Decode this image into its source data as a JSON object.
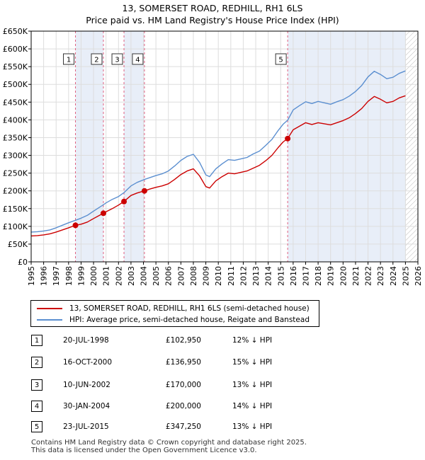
{
  "header": {
    "title_line1": "13, SOMERSET ROAD, REDHILL, RH1 6LS",
    "title_line2": "Price paid vs. HM Land Registry's House Price Index (HPI)"
  },
  "colors": {
    "price_line": "#cc0000",
    "hpi_line": "#5b8fd0",
    "shade": "#e8eef8",
    "vline": "#e06080",
    "grid": "#dddddd"
  },
  "chart_data": {
    "type": "line",
    "title": "13, SOMERSET ROAD, REDHILL, RH1 6LS — Price paid vs. HM Land Registry's House Price Index (HPI)",
    "xlim": [
      1995,
      2026
    ],
    "ylim": [
      0,
      650000
    ],
    "y_ticks": [
      0,
      50000,
      100000,
      150000,
      200000,
      250000,
      300000,
      350000,
      400000,
      450000,
      500000,
      550000,
      600000,
      650000
    ],
    "y_tick_labels": [
      "£0",
      "£50K",
      "£100K",
      "£150K",
      "£200K",
      "£250K",
      "£300K",
      "£350K",
      "£400K",
      "£450K",
      "£500K",
      "£550K",
      "£600K",
      "£650K"
    ],
    "x_ticks": [
      1995,
      1996,
      1997,
      1998,
      1999,
      2000,
      2001,
      2002,
      2003,
      2004,
      2005,
      2006,
      2007,
      2008,
      2009,
      2010,
      2011,
      2012,
      2013,
      2014,
      2015,
      2016,
      2017,
      2018,
      2019,
      2020,
      2021,
      2022,
      2023,
      2024,
      2025,
      2026
    ],
    "x_tick_labels": [
      "1995",
      "1996",
      "1997",
      "1998",
      "1999",
      "2000",
      "2001",
      "2002",
      "2003",
      "2004",
      "2005",
      "2006",
      "2007",
      "2008",
      "2009",
      "2010",
      "2011",
      "2012",
      "2013",
      "2014",
      "2015",
      "2016",
      "2017",
      "2018",
      "2019",
      "2020",
      "2021",
      "2022",
      "2023",
      "2024",
      "2025",
      "2026"
    ],
    "grid": true,
    "shaded_spans": [
      [
        1998.55,
        2000.79
      ],
      [
        2002.44,
        2004.08
      ],
      [
        2015.56,
        2025.0
      ]
    ],
    "hatch_after": 2025.0,
    "series": [
      {
        "name": "13, SOMERSET ROAD, REDHILL, RH1 6LS (semi-detached house)",
        "x": [
          1995.0,
          1995.5,
          1996.0,
          1996.5,
          1997.0,
          1997.5,
          1998.0,
          1998.55,
          1999.0,
          1999.5,
          2000.0,
          2000.79,
          2001.0,
          2001.5,
          2002.0,
          2002.44,
          2003.0,
          2003.5,
          2004.08,
          2004.5,
          2005.0,
          2005.5,
          2006.0,
          2006.5,
          2007.0,
          2007.5,
          2008.0,
          2008.5,
          2009.0,
          2009.3,
          2009.8,
          2010.3,
          2010.8,
          2011.3,
          2011.8,
          2012.3,
          2012.8,
          2013.3,
          2013.8,
          2014.3,
          2014.8,
          2015.2,
          2015.56,
          2016.0,
          2016.5,
          2017.0,
          2017.5,
          2018.0,
          2018.5,
          2019.0,
          2019.5,
          2020.0,
          2020.5,
          2021.0,
          2021.5,
          2022.0,
          2022.5,
          2023.0,
          2023.5,
          2024.0,
          2024.5,
          2025.0
        ],
        "values": [
          73000,
          74000,
          76000,
          79000,
          84000,
          90000,
          96000,
          102950,
          106000,
          112000,
          122000,
          136950,
          141000,
          150000,
          160000,
          170000,
          187000,
          194000,
          200000,
          205000,
          210000,
          214000,
          220000,
          232000,
          246000,
          256000,
          262000,
          242000,
          212000,
          208000,
          228000,
          240000,
          250000,
          248000,
          252000,
          256000,
          264000,
          272000,
          285000,
          300000,
          322000,
          338000,
          347250,
          372000,
          382000,
          392000,
          387000,
          392000,
          389000,
          386000,
          392000,
          398000,
          406000,
          418000,
          432000,
          452000,
          466000,
          458000,
          448000,
          452000,
          462000,
          468000
        ]
      },
      {
        "name": "HPI: Average price, semi-detached house, Reigate and Banstead",
        "x": [
          1995.0,
          1995.5,
          1996.0,
          1996.5,
          1997.0,
          1997.5,
          1998.0,
          1998.55,
          1999.0,
          1999.5,
          2000.0,
          2000.79,
          2001.0,
          2001.5,
          2002.0,
          2002.44,
          2003.0,
          2003.5,
          2004.08,
          2004.5,
          2005.0,
          2005.5,
          2006.0,
          2006.5,
          2007.0,
          2007.5,
          2008.0,
          2008.5,
          2009.0,
          2009.3,
          2009.8,
          2010.3,
          2010.8,
          2011.3,
          2011.8,
          2012.3,
          2012.8,
          2013.3,
          2013.8,
          2014.3,
          2014.8,
          2015.2,
          2015.56,
          2016.0,
          2016.5,
          2017.0,
          2017.5,
          2018.0,
          2018.5,
          2019.0,
          2019.5,
          2020.0,
          2020.5,
          2021.0,
          2021.5,
          2022.0,
          2022.5,
          2023.0,
          2023.5,
          2024.0,
          2024.5,
          2025.0
        ],
        "values": [
          84000,
          85000,
          87000,
          90000,
          96000,
          103000,
          110000,
          117000,
          123000,
          131000,
          143000,
          161000,
          166000,
          176000,
          184000,
          195000,
          214000,
          224000,
          232000,
          237000,
          243000,
          248000,
          256000,
          270000,
          286000,
          297000,
          303000,
          280000,
          245000,
          240000,
          262000,
          276000,
          288000,
          286000,
          290000,
          294000,
          304000,
          312000,
          328000,
          345000,
          370000,
          388000,
          399000,
          428000,
          440000,
          451000,
          446000,
          452000,
          448000,
          444000,
          451000,
          457000,
          467000,
          480000,
          497000,
          521000,
          537000,
          528000,
          516000,
          520000,
          531000,
          538000
        ]
      }
    ],
    "sales": [
      {
        "label": "1",
        "x": 1998.55,
        "price": 102950
      },
      {
        "label": "2",
        "x": 2000.79,
        "price": 136950
      },
      {
        "label": "3",
        "x": 2002.44,
        "price": 170000
      },
      {
        "label": "4",
        "x": 2004.08,
        "price": 200000
      },
      {
        "label": "5",
        "x": 2015.56,
        "price": 347250
      }
    ]
  },
  "legend": {
    "price_label": "13, SOMERSET ROAD, REDHILL, RH1 6LS (semi-detached house)",
    "hpi_label": "HPI: Average price, semi-detached house, Reigate and Banstead"
  },
  "sales_table": [
    {
      "num": "1",
      "date": "20-JUL-1998",
      "price": "£102,950",
      "hpi": "12% ↓ HPI"
    },
    {
      "num": "2",
      "date": "16-OCT-2000",
      "price": "£136,950",
      "hpi": "15% ↓ HPI"
    },
    {
      "num": "3",
      "date": "10-JUN-2002",
      "price": "£170,000",
      "hpi": "13% ↓ HPI"
    },
    {
      "num": "4",
      "date": "30-JAN-2004",
      "price": "£200,000",
      "hpi": "14% ↓ HPI"
    },
    {
      "num": "5",
      "date": "23-JUL-2015",
      "price": "£347,250",
      "hpi": "13% ↓ HPI"
    }
  ],
  "footer": {
    "line1": "Contains HM Land Registry data © Crown copyright and database right 2025.",
    "line2": "This data is licensed under the Open Government Licence v3.0."
  }
}
